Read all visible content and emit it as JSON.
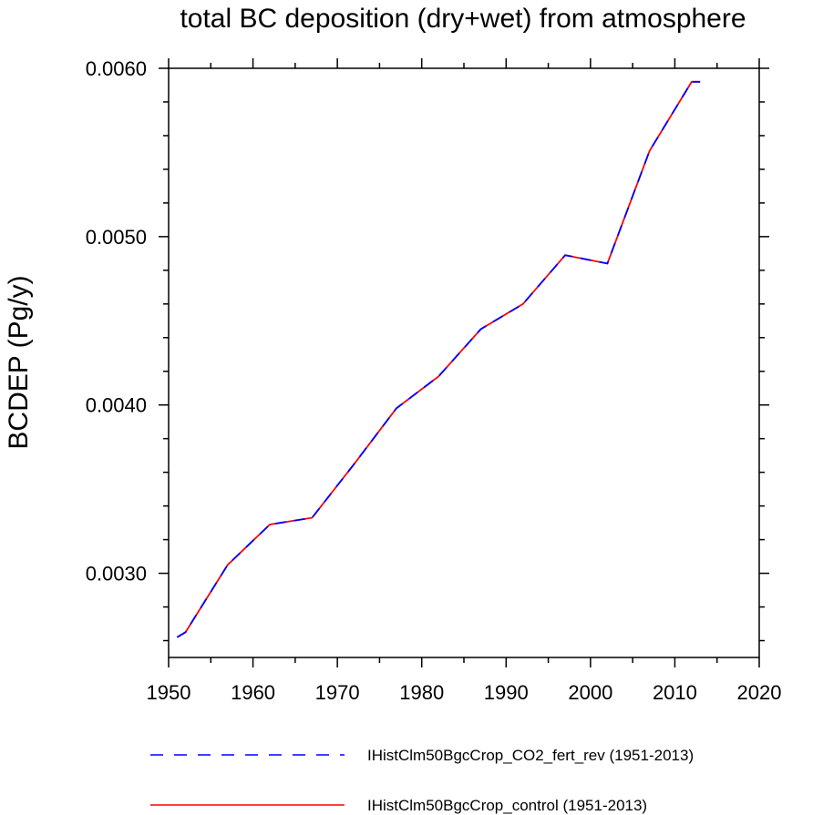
{
  "chart_data": {
    "type": "line",
    "title": "total BC deposition (dry+wet) from atmosphere",
    "xlabel": "",
    "ylabel": "BCDEP  (Pg/y)",
    "xlim": [
      1950,
      2020
    ],
    "ylim": [
      0.0025,
      0.006
    ],
    "x_ticks": [
      1950,
      1960,
      1970,
      1980,
      1990,
      2000,
      2010,
      2020
    ],
    "x_tick_labels": [
      "1950",
      "1960",
      "1970",
      "1980",
      "1990",
      "2000",
      "2010",
      "2020"
    ],
    "y_ticks": [
      0.003,
      0.004,
      0.005,
      0.006
    ],
    "y_tick_labels": [
      "0.0030",
      "0.0040",
      "0.0050",
      "0.0060"
    ],
    "x_minor_step": 5,
    "y_minor_step": 0.0002,
    "grid": false,
    "legend_position": "bottom",
    "x": [
      1951,
      1952,
      1957,
      1962,
      1967,
      1972,
      1977,
      1982,
      1987,
      1992,
      1997,
      2002,
      2007,
      2012,
      2013
    ],
    "series": [
      {
        "name": "IHistClm50BgcCrop_control (1951-2013)",
        "color": "#ff0000",
        "style": "solid",
        "values": [
          0.00262,
          0.00265,
          0.00305,
          0.00329,
          0.00333,
          0.00365,
          0.00398,
          0.00417,
          0.00445,
          0.0046,
          0.00489,
          0.00484,
          0.00551,
          0.00592,
          0.00592
        ]
      },
      {
        "name": "IHistClm50BgcCrop_CO2_fert_rev (1951-2013)",
        "color": "#0000ff",
        "style": "dashed",
        "values": [
          0.00262,
          0.00265,
          0.00305,
          0.00329,
          0.00333,
          0.00365,
          0.00398,
          0.00417,
          0.00445,
          0.0046,
          0.00489,
          0.00484,
          0.00551,
          0.00592,
          0.00592
        ]
      }
    ],
    "legend_order": [
      1,
      0
    ]
  }
}
